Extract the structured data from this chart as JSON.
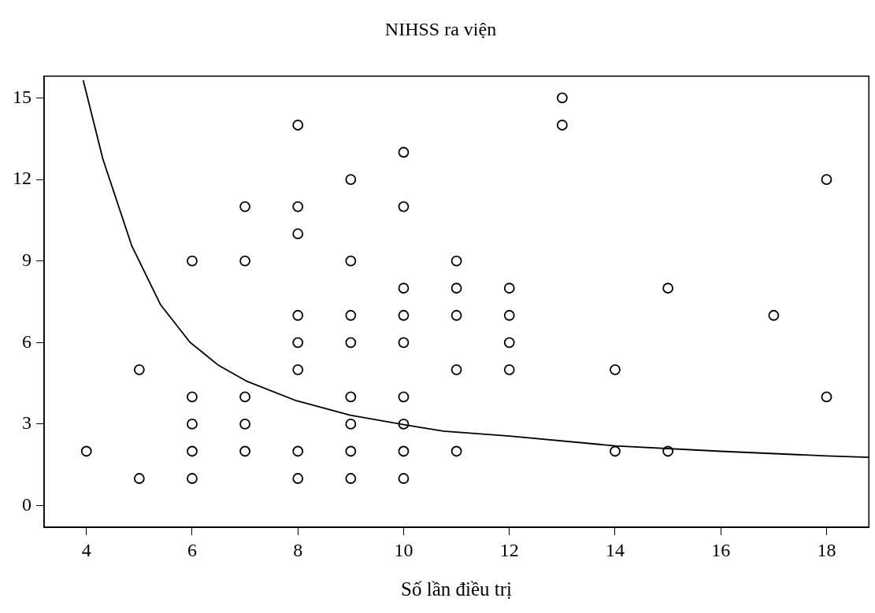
{
  "chart_data": {
    "type": "scatter",
    "title": "NIHSS ra viện",
    "xlabel": "Số lần điều trị",
    "xlim": [
      3.2,
      18.8
    ],
    "xticks": [
      4,
      6,
      8,
      10,
      12,
      14,
      16,
      18
    ],
    "ylim": [
      -0.8,
      15.8
    ],
    "yticks": [
      0,
      3,
      6,
      9,
      12,
      15
    ],
    "grid": false,
    "legend": false,
    "series": [
      {
        "color": "#000000",
        "marker": "circle",
        "x": [
          4,
          5,
          5,
          6,
          6,
          6,
          6,
          6,
          7,
          7,
          7,
          7,
          7,
          8,
          8,
          8,
          8,
          8,
          8,
          8,
          8,
          9,
          9,
          9,
          9,
          9,
          9,
          9,
          9,
          10,
          10,
          10,
          10,
          10,
          10,
          10,
          10,
          10,
          11,
          11,
          11,
          11,
          11,
          12,
          12,
          12,
          12,
          13,
          13,
          14,
          14,
          15,
          15,
          17,
          18,
          18
        ],
        "values": [
          2,
          5,
          1,
          9,
          4,
          3,
          2,
          1,
          11,
          9,
          4,
          3,
          2,
          14,
          11,
          10,
          7,
          6,
          5,
          2,
          1,
          12,
          9,
          7,
          6,
          4,
          3,
          2,
          1,
          13,
          11,
          8,
          7,
          6,
          4,
          3,
          2,
          1,
          9,
          8,
          7,
          5,
          2,
          8,
          7,
          6,
          5,
          15,
          14,
          5,
          2,
          8,
          2,
          7,
          12,
          4
        ]
      },
      {
        "type": "line",
        "color": "#000000",
        "marker": "none",
        "line_style": "solid",
        "x": [
          3.94,
          4.31,
          4.86,
          5.4,
          5.96,
          6.5,
          7.04,
          7.97,
          8.99,
          10,
          10.75,
          12,
          14,
          16,
          18,
          18.8
        ],
        "values": [
          15.65,
          12.76,
          9.55,
          7.4,
          6.01,
          5.16,
          4.57,
          3.86,
          3.33,
          2.98,
          2.74,
          2.56,
          2.2,
          2,
          1.83,
          1.78
        ]
      }
    ]
  }
}
